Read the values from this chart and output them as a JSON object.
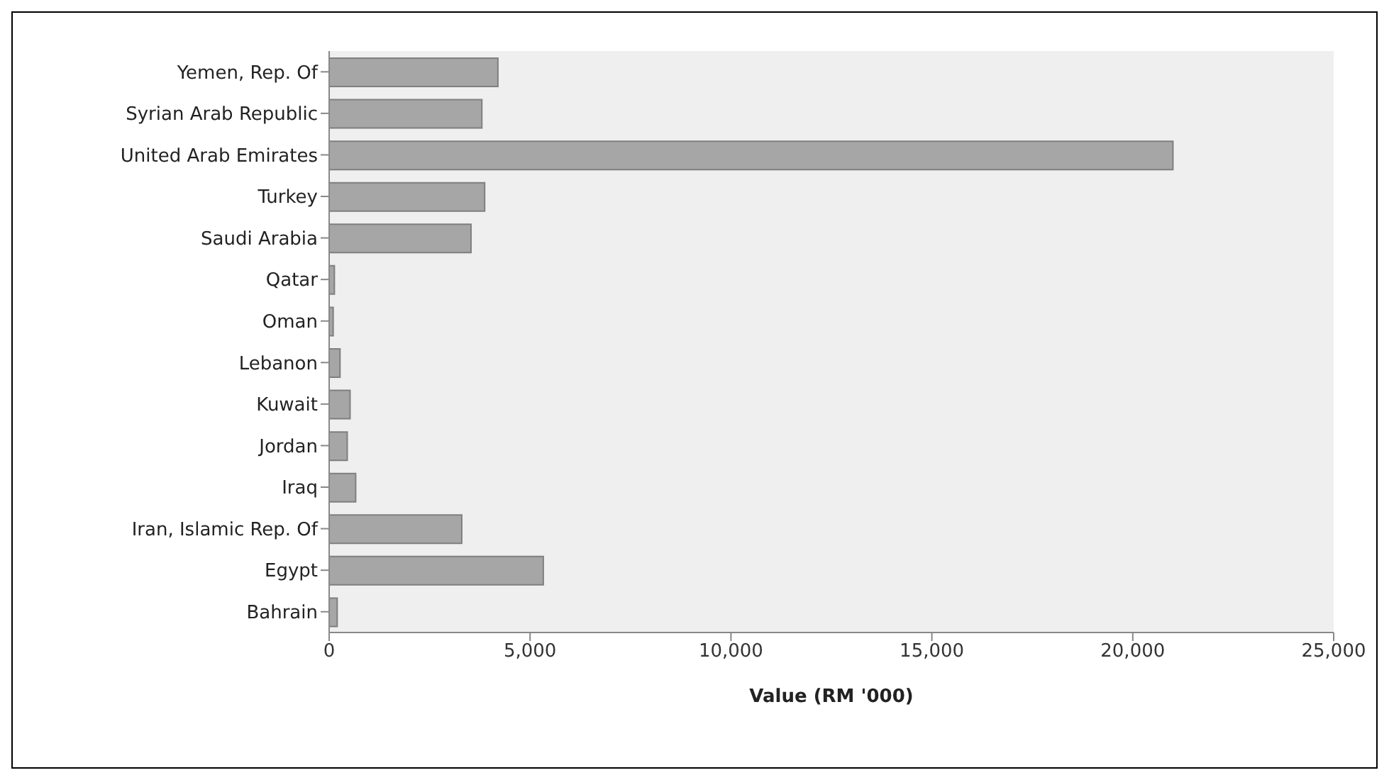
{
  "chart_data": {
    "type": "bar",
    "orientation": "horizontal",
    "xlabel": "Value (RM '000)",
    "categories": [
      "Yemen, Rep. Of",
      "Syrian Arab Republic",
      "United Arab Emirates",
      "Turkey",
      "Saudi Arabia",
      "Qatar",
      "Oman",
      "Lebanon",
      "Kuwait",
      "Jordan",
      "Iraq",
      "Iran, Islamic Rep. Of",
      "Egypt",
      "Bahrain"
    ],
    "values": [
      4200,
      3800,
      21000,
      3870,
      3530,
      130,
      100,
      270,
      520,
      450,
      660,
      3300,
      5330,
      200
    ],
    "color": "#a6a6a6",
    "xlim": [
      0,
      25000
    ],
    "xticks": [
      0,
      {
        "value": 5000,
        "label": "5,000"
      },
      {
        "value": 10000,
        "label": "10,000"
      },
      {
        "value": 15000,
        "label": "15,000"
      },
      {
        "value": 20000,
        "label": "20,000"
      },
      {
        "value": 25000,
        "label": "25,000"
      }
    ]
  }
}
